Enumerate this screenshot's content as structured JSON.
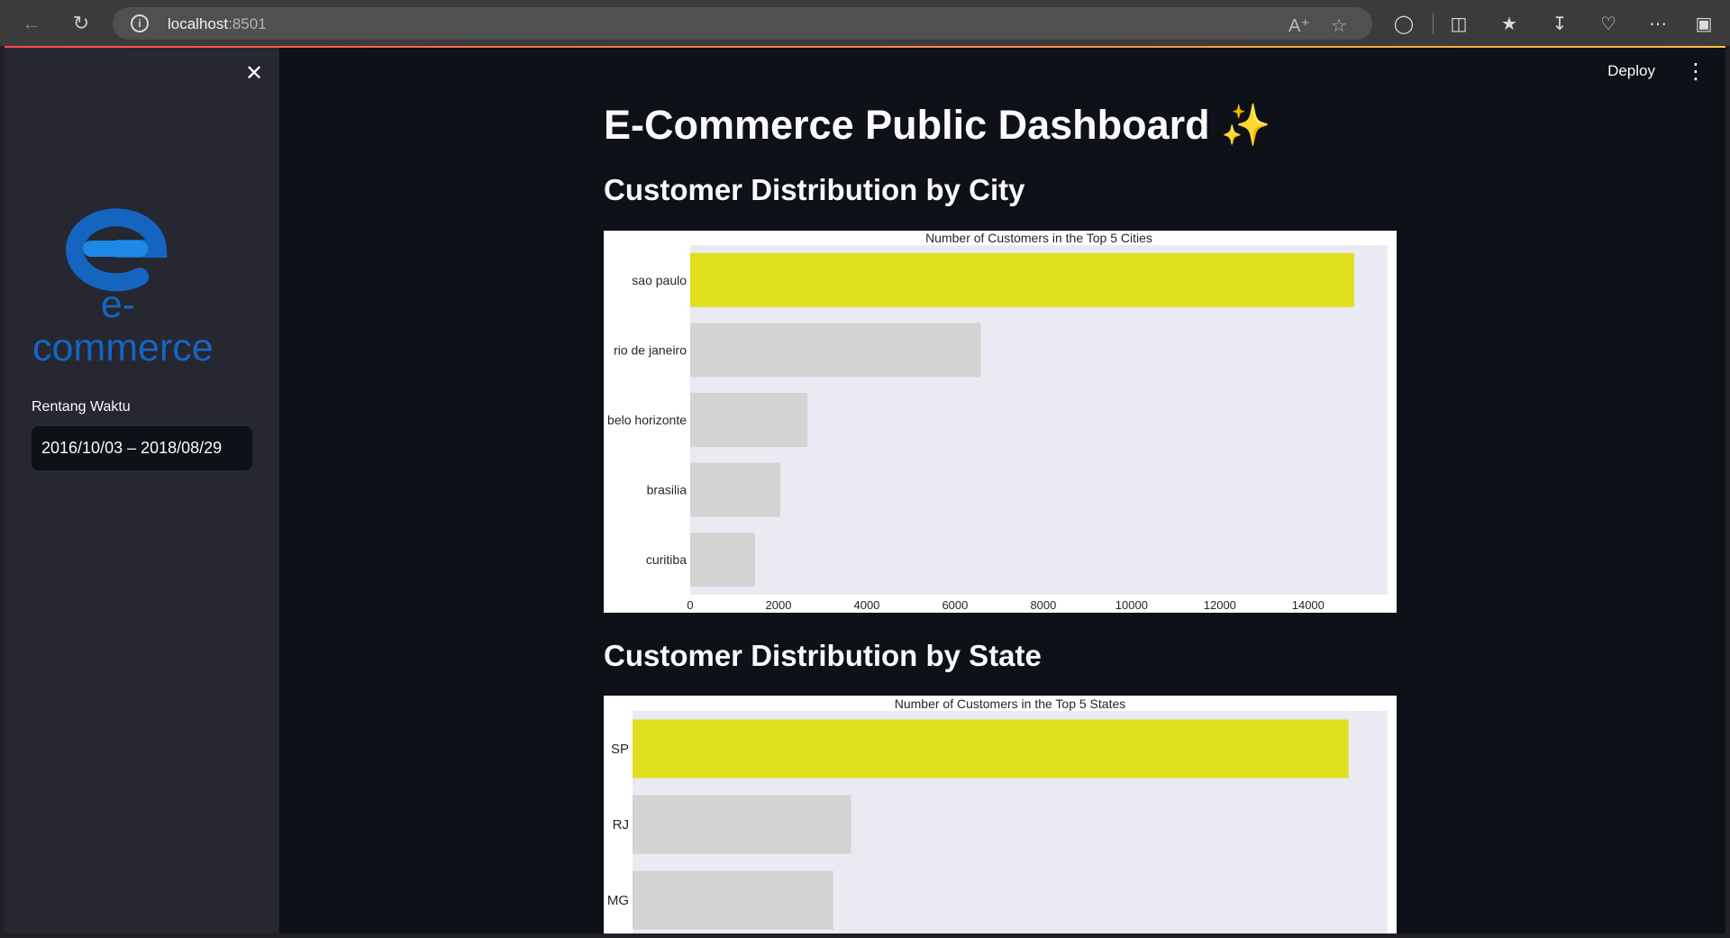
{
  "browser": {
    "url_host": "localhost",
    "url_port": ":8501"
  },
  "sidebar": {
    "logo_text": "e-commerce",
    "date_label": "Rentang Waktu",
    "date_value": "2016/10/03 – 2018/08/29"
  },
  "header": {
    "deploy_label": "Deploy"
  },
  "main": {
    "title": "E-Commerce Public Dashboard",
    "title_emoji": "✨",
    "section_city": "Customer Distribution by City",
    "section_state": "Customer Distribution by State"
  },
  "colors": {
    "highlight": "#e0df1e",
    "bar": "#d3d3d3",
    "plot_bg": "#eaeaf2",
    "logo_blue": "#1565c0"
  },
  "chart_data": [
    {
      "type": "bar",
      "orientation": "horizontal",
      "title": "Number of Customers in the Top 5 Cities",
      "categories": [
        "sao paulo",
        "rio de janeiro",
        "belo horizonte",
        "brasilia",
        "curitiba"
      ],
      "values": [
        15040,
        6580,
        2660,
        2040,
        1470
      ],
      "xticks": [
        "0",
        "2000",
        "4000",
        "6000",
        "8000",
        "10000",
        "12000",
        "14000"
      ],
      "xlim": [
        0,
        15800
      ],
      "highlight_index": 0
    },
    {
      "type": "bar",
      "orientation": "horizontal",
      "title": "Number of Customers in the Top 5 States",
      "categories": [
        "SP",
        "RJ",
        "MG"
      ],
      "values": [
        40300,
        12300,
        11300
      ],
      "xlim": [
        0,
        42500
      ],
      "highlight_index": 0
    }
  ]
}
